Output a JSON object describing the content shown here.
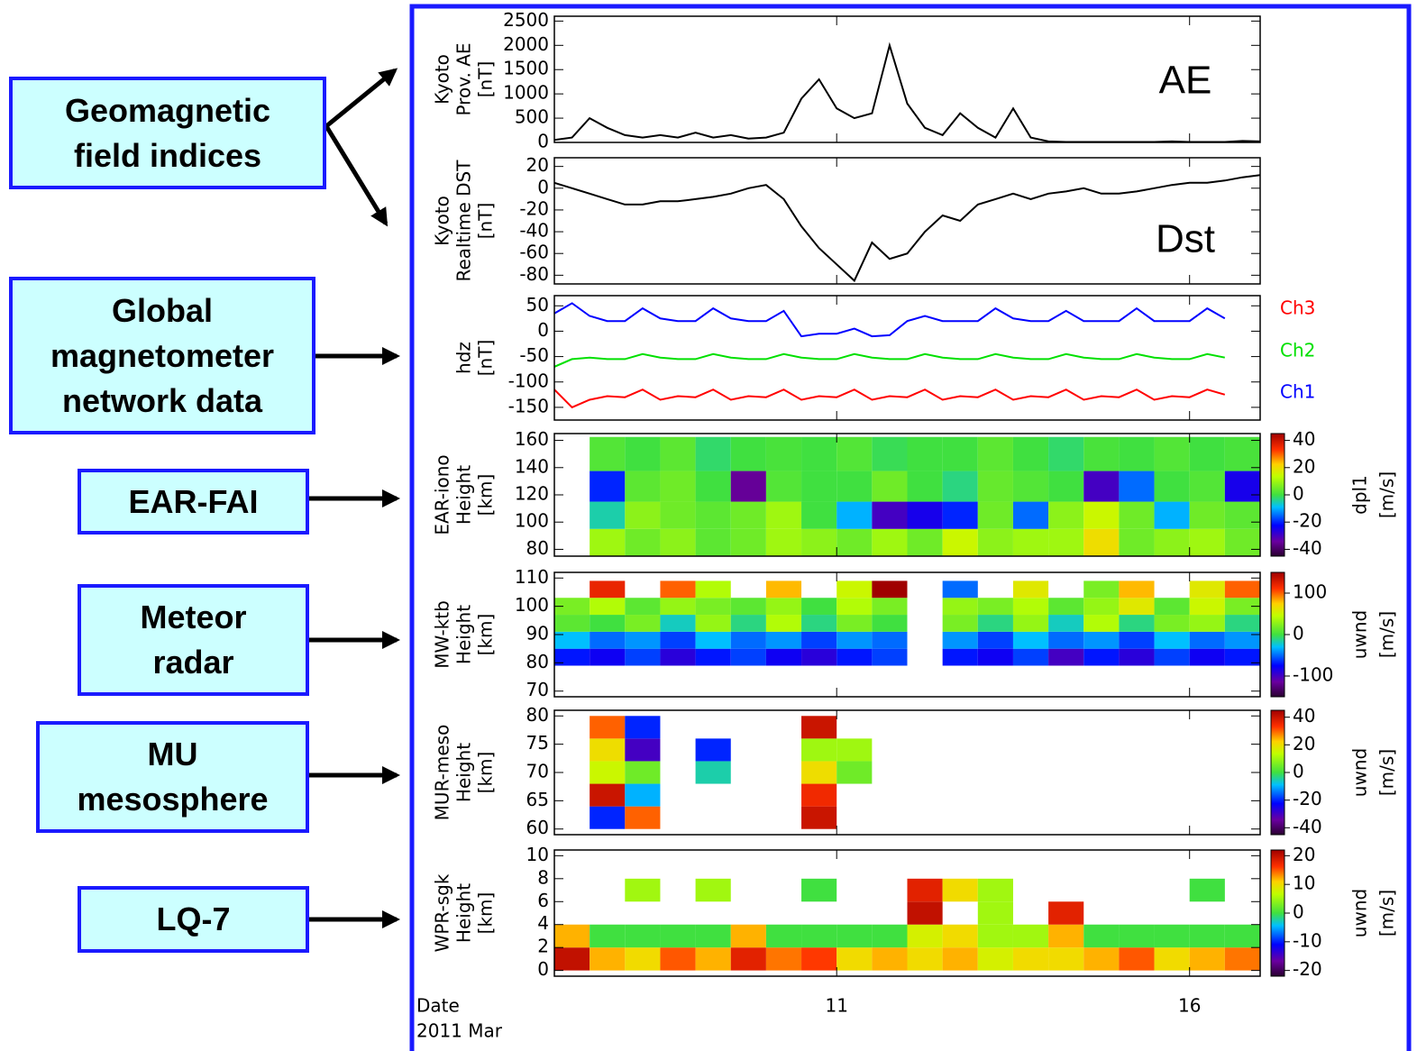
{
  "callouts": [
    {
      "lines": [
        "Geomagnetic",
        "field indices"
      ]
    },
    {
      "lines": [
        "Global",
        "magnetometer",
        "network data"
      ]
    },
    {
      "lines": [
        "EAR-FAI"
      ]
    },
    {
      "lines": [
        "Meteor",
        "radar"
      ]
    },
    {
      "lines": [
        "MU",
        "mesosphere"
      ]
    },
    {
      "lines": [
        "LQ-7"
      ]
    }
  ],
  "chart_data": [
    {
      "type": "line",
      "ylabel": [
        "Kyoto",
        "Prov. AE",
        "[nT]"
      ],
      "annotation": "AE",
      "xlim": [
        7,
        17
      ],
      "xticks": [
        11,
        16
      ],
      "ylim": [
        0,
        2600
      ],
      "yticks": [
        0,
        500,
        1000,
        1500,
        2000,
        2500
      ],
      "x": [
        7,
        7.25,
        7.5,
        7.75,
        8,
        8.25,
        8.5,
        8.75,
        9,
        9.25,
        9.5,
        9.75,
        10,
        10.25,
        10.5,
        10.75,
        11,
        11.25,
        11.5,
        11.75,
        12,
        12.25,
        12.5,
        12.75,
        13,
        13.25,
        13.5,
        13.75,
        14,
        14.25,
        14.5,
        14.75,
        15,
        15.25,
        15.5,
        15.75,
        16,
        16.25,
        16.5,
        16.75,
        17
      ],
      "series": [
        {
          "color": "#000000",
          "values": [
            50,
            100,
            500,
            300,
            150,
            100,
            150,
            100,
            200,
            100,
            150,
            80,
            100,
            200,
            900,
            1300,
            700,
            500,
            600,
            2000,
            800,
            300,
            150,
            600,
            300,
            100,
            700,
            100,
            20,
            10,
            10,
            10,
            10,
            10,
            10,
            20,
            10,
            10,
            10,
            30,
            20
          ]
        }
      ]
    },
    {
      "type": "line",
      "ylabel": [
        "Kyoto",
        "Realtime DST",
        "[nT]"
      ],
      "annotation": "Dst",
      "xlim": [
        7,
        17
      ],
      "xticks": [
        11,
        16
      ],
      "ylim": [
        -88,
        28
      ],
      "yticks": [
        20,
        0,
        -20,
        -40,
        -60,
        -80
      ],
      "x": [
        7,
        7.25,
        7.5,
        7.75,
        8,
        8.25,
        8.5,
        8.75,
        9,
        9.25,
        9.5,
        9.75,
        10,
        10.25,
        10.5,
        10.75,
        11,
        11.25,
        11.5,
        11.75,
        12,
        12.25,
        12.5,
        12.75,
        13,
        13.25,
        13.5,
        13.75,
        14,
        14.25,
        14.5,
        14.75,
        15,
        15.25,
        15.5,
        15.75,
        16,
        16.25,
        16.5,
        16.75,
        17
      ],
      "series": [
        {
          "color": "#000000",
          "values": [
            5,
            0,
            -5,
            -10,
            -15,
            -15,
            -12,
            -12,
            -10,
            -8,
            -5,
            0,
            3,
            -10,
            -35,
            -55,
            -70,
            -85,
            -50,
            -65,
            -60,
            -40,
            -25,
            -30,
            -15,
            -10,
            -5,
            -10,
            -5,
            -3,
            0,
            -5,
            -5,
            -3,
            0,
            3,
            5,
            5,
            7,
            10,
            12
          ]
        }
      ]
    },
    {
      "type": "line",
      "ylabel": [
        "hdz",
        "[nT]"
      ],
      "xlim": [
        7,
        17
      ],
      "xticks": [
        11,
        16
      ],
      "ylim": [
        -175,
        70
      ],
      "yticks": [
        50,
        0,
        -50,
        -100,
        -150
      ],
      "x": [
        7,
        7.25,
        7.5,
        7.75,
        8,
        8.25,
        8.5,
        8.75,
        9,
        9.25,
        9.5,
        9.75,
        10,
        10.25,
        10.5,
        10.75,
        11,
        11.25,
        11.5,
        11.75,
        12,
        12.25,
        12.5,
        12.75,
        13,
        13.25,
        13.5,
        13.75,
        14,
        14.25,
        14.5,
        14.75,
        15,
        15.25,
        15.5,
        15.75,
        16,
        16.25,
        16.5,
        16.75,
        17
      ],
      "series": [
        {
          "name": "Ch1",
          "color": "#0000ff",
          "values": [
            35,
            55,
            30,
            20,
            20,
            45,
            25,
            20,
            20,
            45,
            25,
            20,
            20,
            40,
            -10,
            -5,
            -5,
            5,
            -10,
            -8,
            20,
            30,
            20,
            20,
            20,
            45,
            25,
            20,
            20,
            40,
            20,
            20,
            20,
            45,
            20,
            20,
            20,
            45,
            25,
            null,
            null
          ]
        },
        {
          "name": "Ch2",
          "color": "#00e000",
          "values": [
            -70,
            -55,
            -52,
            -55,
            -55,
            -45,
            -52,
            -55,
            -55,
            -45,
            -52,
            -55,
            -55,
            -45,
            -52,
            -55,
            -55,
            -45,
            -52,
            -55,
            -55,
            -45,
            -52,
            -55,
            -55,
            -45,
            -52,
            -55,
            -55,
            -45,
            -52,
            -55,
            -55,
            -45,
            -52,
            -55,
            -55,
            -45,
            -52,
            null,
            null
          ]
        },
        {
          "name": "Ch3",
          "color": "#ff0000",
          "values": [
            -115,
            -150,
            -135,
            -128,
            -130,
            -115,
            -135,
            -128,
            -130,
            -115,
            -135,
            -128,
            -130,
            -115,
            -135,
            -128,
            -130,
            -115,
            -135,
            -128,
            -130,
            -115,
            -135,
            -128,
            -130,
            -115,
            -135,
            -128,
            -130,
            -115,
            -135,
            -128,
            -130,
            -115,
            -135,
            -128,
            -130,
            -115,
            -125,
            null,
            null
          ]
        }
      ]
    },
    {
      "type": "heatmap",
      "ylabel": [
        "EAR-iono",
        "Height",
        "[km]"
      ],
      "zlabel": [
        "dpl1",
        "[m/s]"
      ],
      "xlim": [
        7,
        17
      ],
      "xticks": [
        11,
        16
      ],
      "ylim": [
        75,
        165
      ],
      "yticks": [
        80,
        100,
        120,
        140,
        160
      ],
      "zlim": [
        -45,
        45
      ],
      "zticks": [
        40,
        20,
        0,
        -20,
        -40
      ],
      "x": [
        7.25,
        7.75,
        8.25,
        8.75,
        9.25,
        9.75,
        10.25,
        10.75,
        11.25,
        11.75,
        12.25,
        12.75,
        13.25,
        13.75,
        14.25,
        14.75,
        15.25,
        15.75,
        16.25,
        16.75
      ],
      "y": [
        85,
        105,
        125,
        150
      ],
      "values": [
        [
          null,
          10,
          5,
          8,
          3,
          5,
          10,
          8,
          5,
          10,
          5,
          15,
          8,
          10,
          10,
          20,
          5,
          8,
          10,
          5
        ],
        [
          null,
          -5,
          8,
          5,
          3,
          5,
          10,
          0,
          -10,
          -30,
          -25,
          -20,
          5,
          -15,
          8,
          15,
          5,
          -10,
          5,
          3
        ],
        [
          null,
          -20,
          3,
          5,
          0,
          -35,
          2,
          0,
          0,
          5,
          0,
          -3,
          4,
          2,
          0,
          -30,
          -15,
          0,
          2,
          -25
        ],
        [
          null,
          2,
          0,
          3,
          -2,
          0,
          1,
          0,
          2,
          -1,
          0,
          0,
          3,
          0,
          -2,
          1,
          0,
          2,
          0,
          1
        ]
      ]
    },
    {
      "type": "heatmap",
      "ylabel": [
        "MW-ktb",
        "Height",
        "[km]"
      ],
      "zlabel": [
        "uwnd",
        "[m/s]"
      ],
      "xlim": [
        7,
        17
      ],
      "xticks": [
        11,
        16
      ],
      "ylim": [
        68,
        112
      ],
      "yticks": [
        70,
        80,
        90,
        100,
        110
      ],
      "zlim": [
        -150,
        150
      ],
      "zticks": [
        100,
        0,
        -100
      ],
      "x": [
        7.25,
        7.75,
        8.25,
        8.75,
        9.25,
        9.75,
        10.25,
        10.75,
        11.25,
        11.75,
        12.25,
        12.75,
        13.25,
        13.75,
        14.25,
        14.75,
        15.25,
        15.75,
        16.25,
        16.75
      ],
      "y": [
        82,
        88,
        94,
        100,
        106
      ],
      "values": [
        [
          -70,
          -80,
          -60,
          -90,
          -70,
          -60,
          -80,
          -90,
          -70,
          -60,
          null,
          -70,
          -80,
          -60,
          -100,
          -70,
          -90,
          -60,
          -80,
          -70
        ],
        [
          -30,
          -50,
          -40,
          -60,
          -30,
          -50,
          -40,
          -60,
          -40,
          -50,
          null,
          -40,
          -60,
          -30,
          -50,
          -40,
          -60,
          -30,
          -50,
          -40
        ],
        [
          10,
          0,
          20,
          -20,
          30,
          -10,
          40,
          -10,
          20,
          0,
          null,
          20,
          -10,
          30,
          -20,
          40,
          -10,
          20,
          30,
          -10
        ],
        [
          20,
          40,
          10,
          30,
          20,
          10,
          30,
          0,
          40,
          20,
          null,
          30,
          20,
          40,
          10,
          30,
          60,
          10,
          50,
          20
        ],
        [
          null,
          120,
          null,
          100,
          40,
          null,
          80,
          null,
          50,
          150,
          null,
          -50,
          null,
          60,
          null,
          20,
          80,
          null,
          60,
          100
        ]
      ]
    },
    {
      "type": "heatmap",
      "ylabel": [
        "MUR-meso",
        "Height",
        "[km]"
      ],
      "zlabel": [
        "uwnd",
        "[m/s]"
      ],
      "xlim": [
        7,
        17
      ],
      "xticks": [
        11,
        16
      ],
      "ylim": [
        59,
        81
      ],
      "yticks": [
        60,
        65,
        70,
        75,
        80
      ],
      "zlim": [
        -45,
        45
      ],
      "zticks": [
        40,
        20,
        0,
        -20,
        -40
      ],
      "x": [
        7.25,
        7.75,
        8.25,
        8.75,
        9.25,
        9.75,
        10.25,
        10.75,
        11.25,
        11.75,
        12.25,
        12.75,
        13.25,
        13.75,
        14.25,
        14.75,
        15.25,
        15.75,
        16.25,
        16.75
      ],
      "y": [
        62,
        66,
        70,
        74,
        78
      ],
      "values": [
        [
          null,
          -20,
          30,
          null,
          null,
          null,
          null,
          40,
          null,
          null,
          null,
          null,
          null,
          null,
          null,
          null,
          null,
          null,
          null,
          null
        ],
        [
          null,
          40,
          -10,
          null,
          null,
          null,
          null,
          35,
          null,
          null,
          null,
          null,
          null,
          null,
          null,
          null,
          null,
          null,
          null,
          null
        ],
        [
          null,
          15,
          5,
          null,
          -5,
          null,
          null,
          20,
          5,
          null,
          null,
          null,
          null,
          null,
          null,
          null,
          null,
          null,
          null,
          null
        ],
        [
          null,
          20,
          -30,
          null,
          -20,
          null,
          null,
          10,
          10,
          null,
          null,
          null,
          null,
          null,
          null,
          null,
          null,
          null,
          null,
          null
        ],
        [
          null,
          30,
          -20,
          null,
          null,
          null,
          null,
          40,
          null,
          null,
          null,
          null,
          null,
          null,
          null,
          null,
          null,
          null,
          null,
          null
        ]
      ]
    },
    {
      "type": "heatmap",
      "ylabel": [
        "WPR-sgk",
        "Height",
        "[km]"
      ],
      "zlabel": [
        "uwnd",
        "[m/s]"
      ],
      "xlabel": [
        "Date",
        "2011 Mar"
      ],
      "xlim": [
        7,
        17
      ],
      "xticks": [
        11,
        16
      ],
      "ylim": [
        -0.5,
        10.5
      ],
      "yticks": [
        0,
        2,
        4,
        6,
        8,
        10
      ],
      "zlim": [
        -22,
        22
      ],
      "zticks": [
        20,
        10,
        0,
        -10,
        -20
      ],
      "x": [
        7.25,
        7.75,
        8.25,
        8.75,
        9.25,
        9.75,
        10.25,
        10.75,
        11.25,
        11.75,
        12.25,
        12.75,
        13.25,
        13.75,
        14.25,
        14.75,
        15.25,
        15.75,
        16.25,
        16.75
      ],
      "y": [
        1,
        3,
        5,
        7
      ],
      "values": [
        [
          20,
          12,
          10,
          15,
          12,
          18,
          14,
          16,
          10,
          12,
          10,
          12,
          8,
          10,
          10,
          12,
          15,
          10,
          12,
          14
        ],
        [
          12,
          0,
          0,
          0,
          0,
          12,
          0,
          0,
          0,
          0,
          8,
          10,
          5,
          5,
          12,
          0,
          0,
          0,
          0,
          0
        ],
        [
          null,
          null,
          null,
          null,
          null,
          null,
          null,
          null,
          null,
          null,
          20,
          null,
          5,
          null,
          18,
          null,
          null,
          null,
          null,
          null
        ],
        [
          null,
          null,
          5,
          null,
          5,
          null,
          null,
          0,
          null,
          null,
          18,
          10,
          5,
          null,
          null,
          null,
          null,
          null,
          0,
          null
        ]
      ]
    }
  ]
}
